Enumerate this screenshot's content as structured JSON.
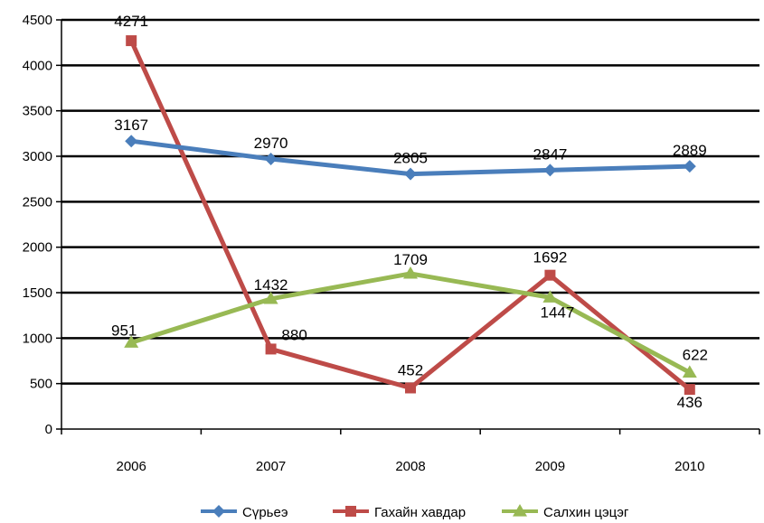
{
  "chart_data": {
    "type": "line",
    "categories": [
      "2006",
      "2007",
      "2008",
      "2009",
      "2010"
    ],
    "ylim": [
      0,
      4500
    ],
    "yticks": [
      0,
      500,
      1000,
      1500,
      2000,
      2500,
      3000,
      3500,
      4000,
      4500
    ],
    "grid": true,
    "legend": "bottom",
    "series": [
      {
        "name": "Сүрьеэ",
        "values": [
          3167,
          2970,
          2805,
          2847,
          2889
        ],
        "labels": [
          "3167",
          "2970",
          "2805",
          "2847",
          "2889"
        ],
        "color": "#4a7ebb",
        "marker": "diamond"
      },
      {
        "name": "Гахайн хавдар",
        "values": [
          4271,
          880,
          452,
          1692,
          436
        ],
        "labels": [
          "4271",
          "880",
          "452",
          "1692",
          "436"
        ],
        "color": "#be4b48",
        "marker": "square"
      },
      {
        "name": "Салхин цэцэг",
        "values": [
          951,
          1432,
          1709,
          1447,
          622
        ],
        "labels": [
          "951",
          "1432",
          "1709",
          "1447",
          "622"
        ],
        "color": "#98b954",
        "marker": "triangle"
      }
    ]
  }
}
